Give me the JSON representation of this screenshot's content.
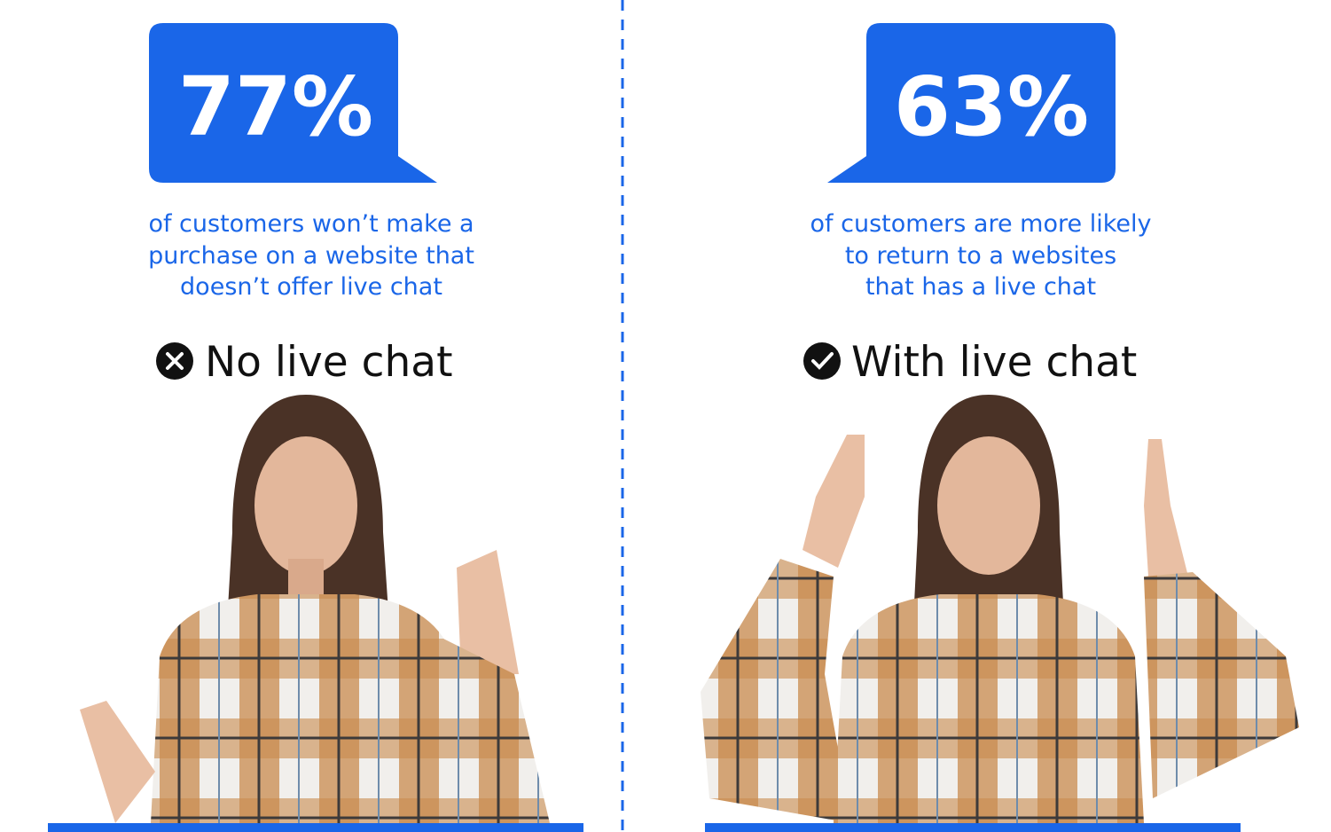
{
  "left": {
    "stat": "77%",
    "caption": [
      "of customers won’t make a",
      "purchase on a website that",
      "doesn’t offer live chat"
    ],
    "label": "No live chat"
  },
  "right": {
    "stat": "63%",
    "caption": [
      "of customers are more likely",
      "to return to a websites",
      "that has a live chat"
    ],
    "label": "With live chat"
  }
}
